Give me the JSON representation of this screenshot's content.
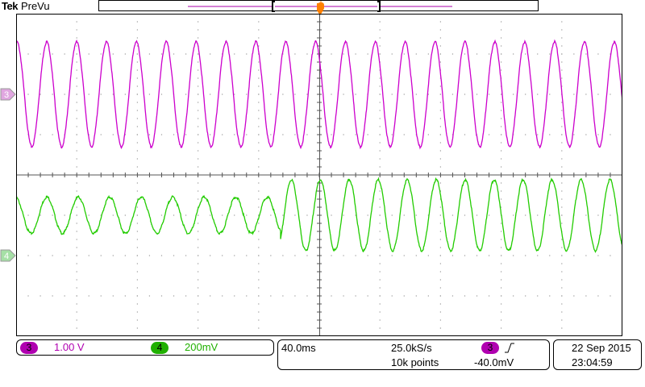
{
  "header": {
    "brand": "Tek",
    "acq_status": "PreVu"
  },
  "channels": [
    {
      "id": "3",
      "marker": "3",
      "color": "#cc00cc",
      "badge_color": "#b000b0",
      "marker_bg": "#e0a6e0",
      "scale": "1.00 V"
    },
    {
      "id": "4",
      "marker": "4",
      "color": "#22cc00",
      "badge_color": "#20b000",
      "marker_bg": "#a6e0a6",
      "scale": "200mV"
    }
  ],
  "horizontal": {
    "timebase": "40.0ms",
    "sample_rate": "25.0kS/s",
    "record_length": "10k points"
  },
  "trigger": {
    "source": "3",
    "slope_icon": "rising-edge-icon",
    "level": "-40.0mV",
    "marker_color": "#ff8000"
  },
  "datetime": {
    "date": "22 Sep  2015",
    "time": "23:04:59"
  },
  "display": {
    "graticule_divisions_x": 10,
    "graticule_divisions_y": 8,
    "grid_color": "#9a9a9a",
    "screen_border_color": "#000000"
  },
  "waveforms": {
    "ch3": {
      "cycles": 20.3,
      "amplitude_div": 1.3,
      "offset_div": -2.0
    },
    "ch4_before": {
      "cycles": 8.4,
      "amplitude_div": 0.45,
      "offset_div": 0.5
    },
    "ch4_after": {
      "cycles": 11.8,
      "amplitude_div": 0.88,
      "offset_div": 0.5
    }
  }
}
